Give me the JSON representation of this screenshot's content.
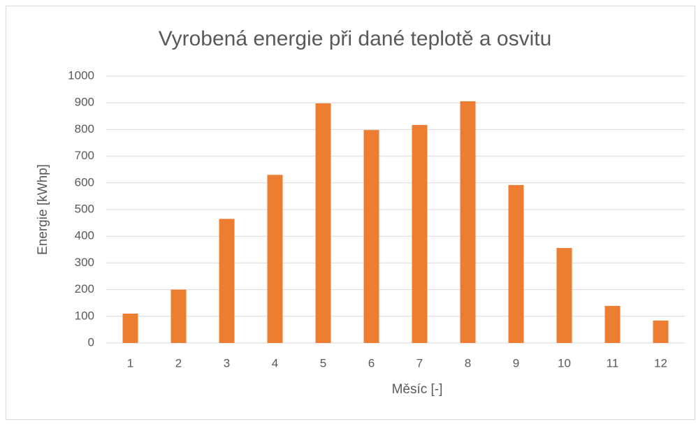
{
  "chart_data": {
    "type": "bar",
    "title": "Vyrobená energie při dané teplotě a osvitu",
    "x_label": "Měsíc [-]",
    "y_label": "Energie [kWhp]",
    "categories": [
      "1",
      "2",
      "3",
      "4",
      "5",
      "6",
      "7",
      "8",
      "9",
      "10",
      "11",
      "12"
    ],
    "values": [
      110,
      200,
      465,
      630,
      898,
      798,
      817,
      906,
      592,
      356,
      139,
      84
    ],
    "color": "#ed7d31",
    "ylim": [
      0,
      1000
    ],
    "yticks": [
      0,
      100,
      200,
      300,
      400,
      500,
      600,
      700,
      800,
      900,
      1000
    ],
    "grid": true
  }
}
